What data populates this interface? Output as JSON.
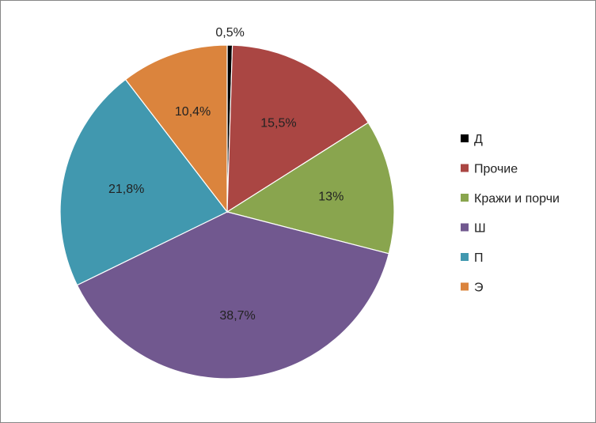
{
  "chart_data": {
    "type": "pie",
    "title": "",
    "legend_position": "right",
    "slices": [
      {
        "name": "Д",
        "value": 0.5,
        "label": "0,5%",
        "color": "#000000"
      },
      {
        "name": "Прочие",
        "value": 15.5,
        "label": "15,5%",
        "color": "#AA4643"
      },
      {
        "name": "Кражи и порчи",
        "value": 13,
        "label": "13%",
        "color": "#89A54E"
      },
      {
        "name": "Ш",
        "value": 38.7,
        "label": "38,7%",
        "color": "#71588F"
      },
      {
        "name": "П",
        "value": 21.8,
        "label": "21,8%",
        "color": "#4198AF"
      },
      {
        "name": "Э",
        "value": 10.4,
        "label": "10,4%",
        "color": "#DB843D"
      }
    ]
  }
}
